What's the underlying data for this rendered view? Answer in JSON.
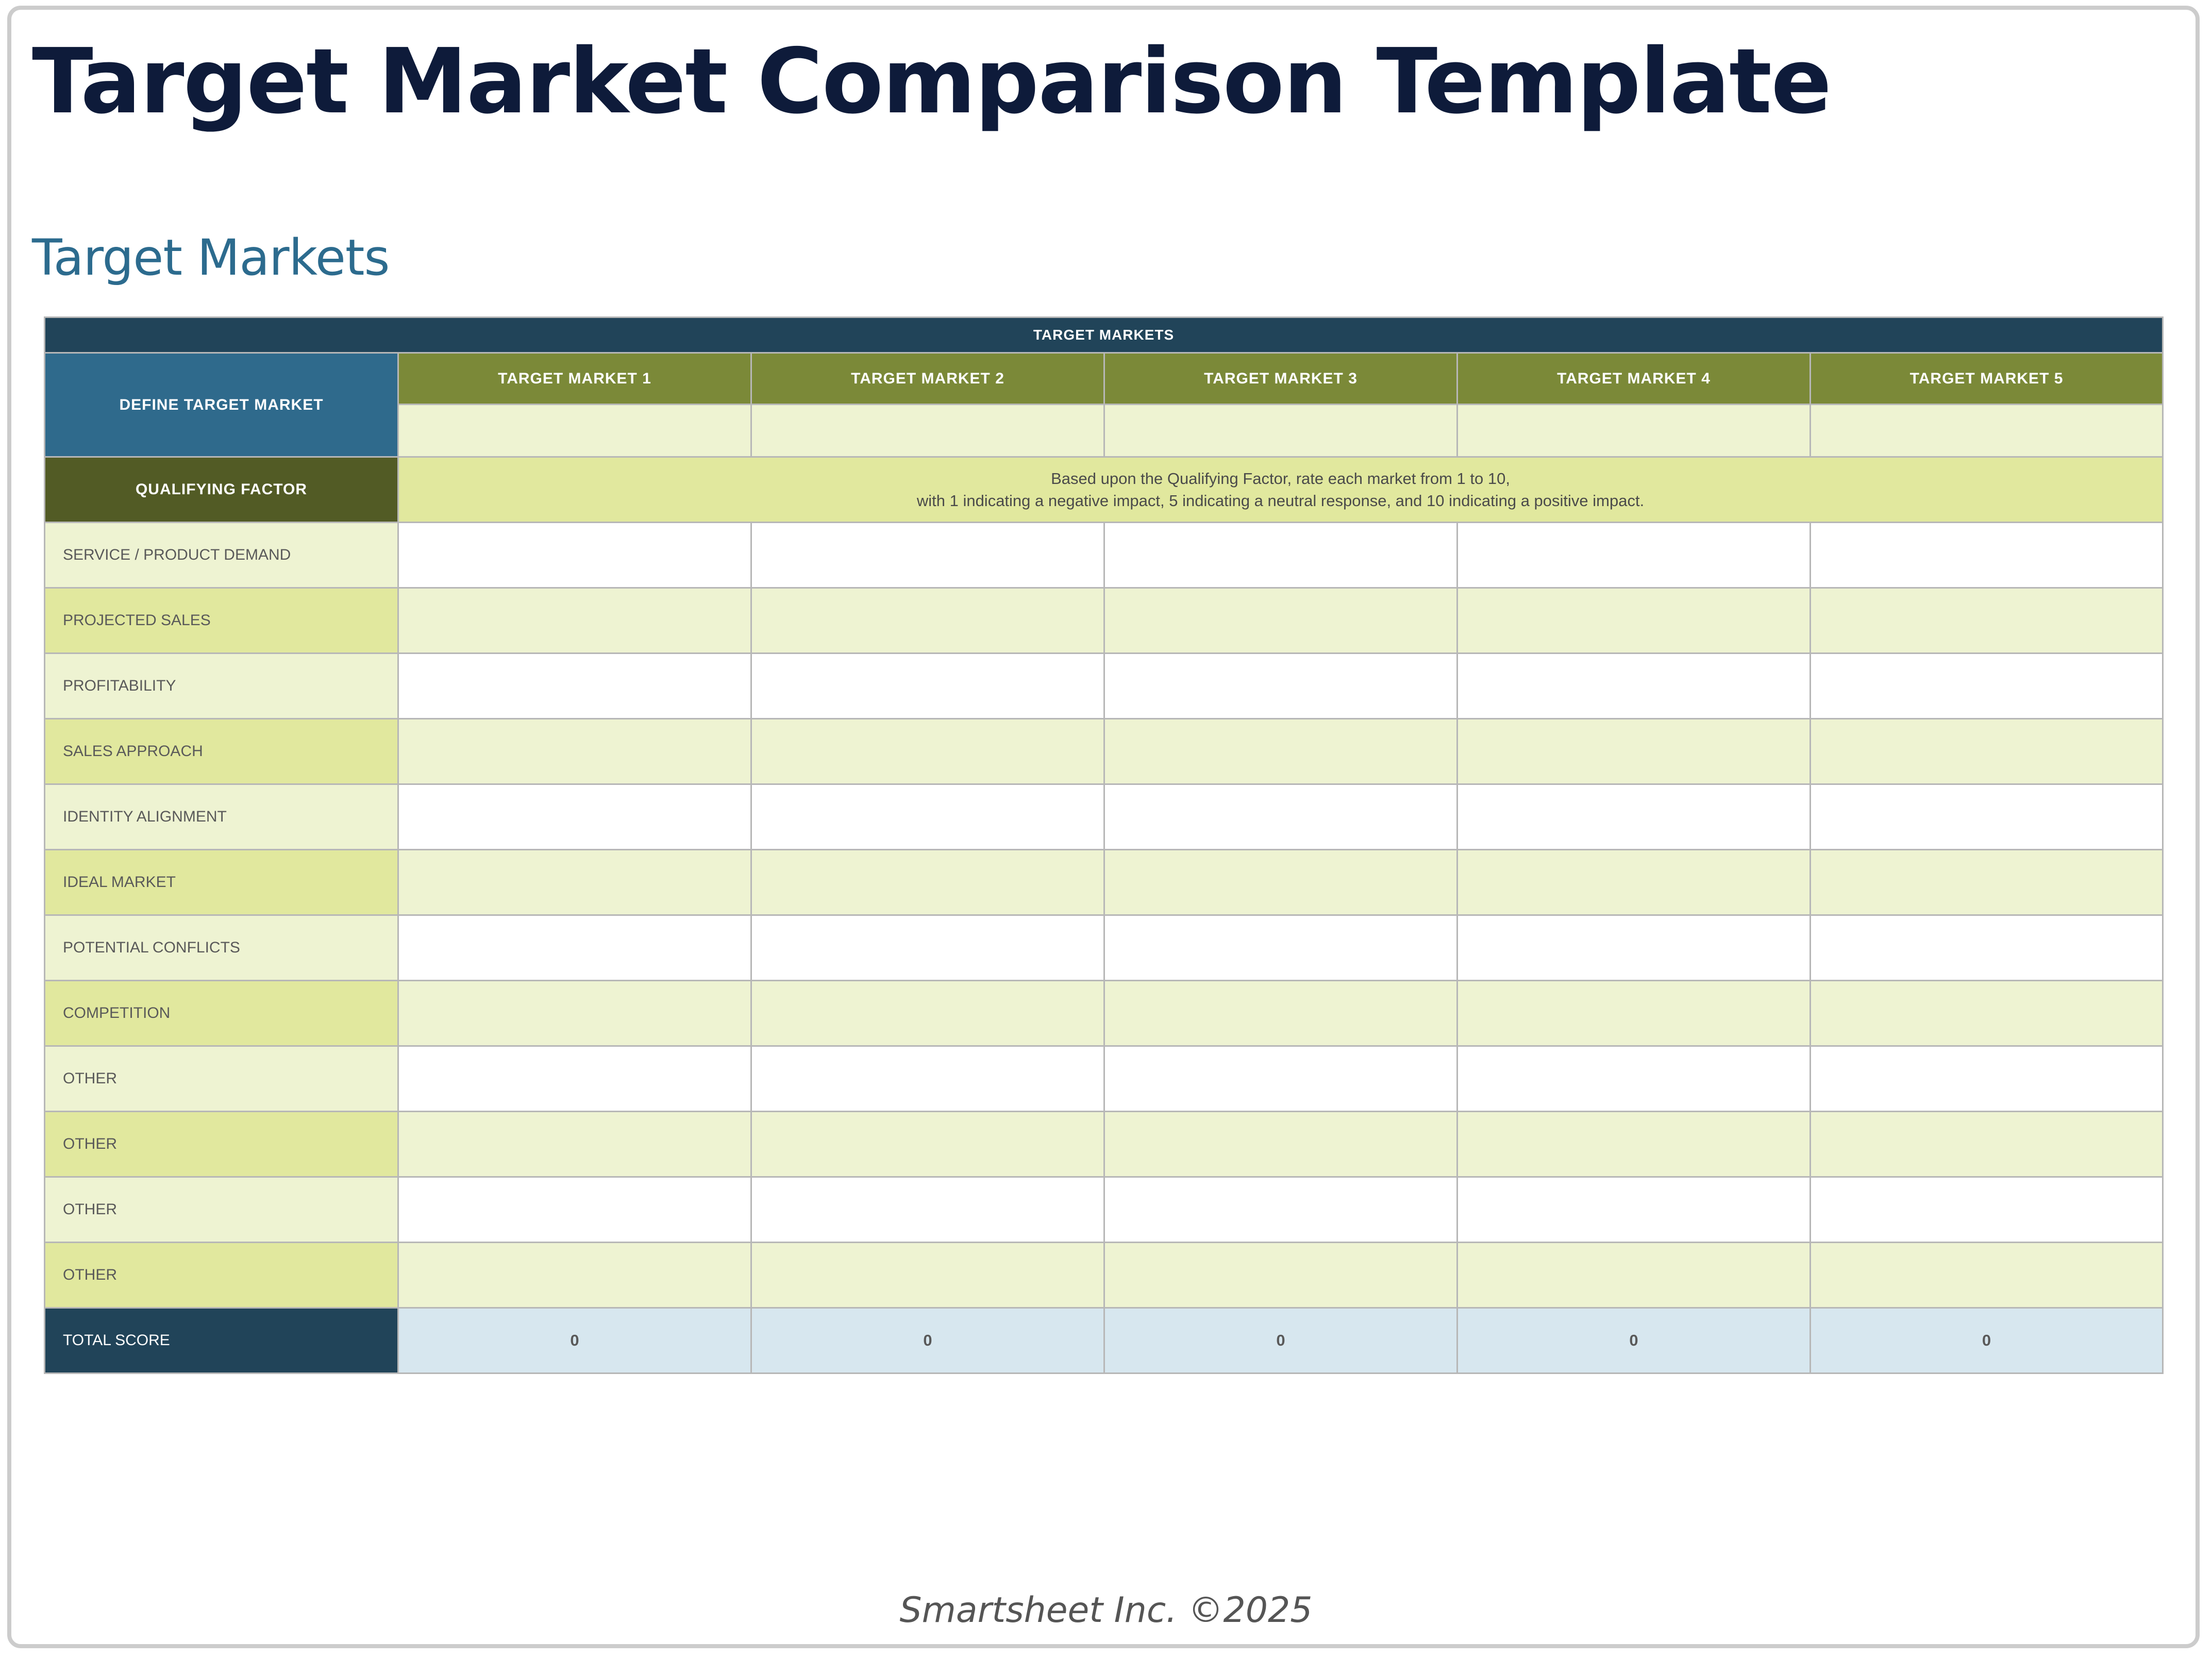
{
  "title": "Target Market Comparison Template",
  "section_title": "Target Markets",
  "table": {
    "top_header": "TARGET MARKETS",
    "define_label": "DEFINE TARGET MARKET",
    "market_headers": [
      "TARGET MARKET 1",
      "TARGET MARKET 2",
      "TARGET MARKET 3",
      "TARGET MARKET 4",
      "TARGET MARKET 5"
    ],
    "market_names": [
      "",
      "",
      "",
      "",
      ""
    ],
    "qualifying_label": "QUALIFYING FACTOR",
    "instruction_line1": "Based upon the Qualifying Factor, rate each market from 1 to 10,",
    "instruction_line2": "with 1 indicating a negative impact, 5 indicating a neutral response, and 10 indicating a positive impact.",
    "factors": [
      "SERVICE / PRODUCT DEMAND",
      "PROJECTED SALES",
      "PROFITABILITY",
      "SALES APPROACH",
      "IDENTITY ALIGNMENT",
      "IDEAL MARKET",
      "POTENTIAL CONFLICTS",
      "COMPETITION",
      "OTHER",
      "OTHER",
      "OTHER",
      "OTHER"
    ],
    "total_label": "TOTAL SCORE",
    "totals": [
      "0",
      "0",
      "0",
      "0",
      "0"
    ]
  },
  "footer": "Smartsheet Inc. ©2025"
}
